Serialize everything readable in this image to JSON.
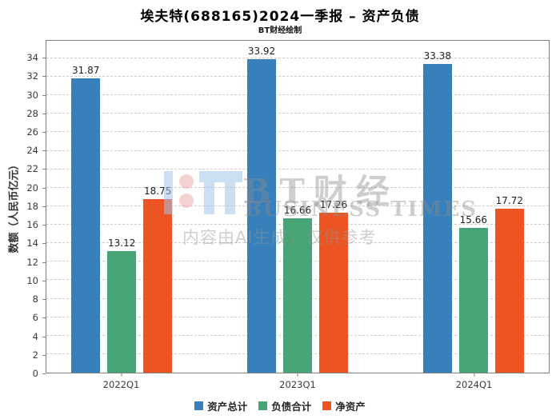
{
  "title": "埃夫特(688165)2024一季报 – 资产负债",
  "subtitle": "BT财经绘制",
  "watermark": {
    "brand_cn": "BT财经",
    "brand_en": "BUSINESS TIMES",
    "disclaimer": "内容由AI生成，仅供参考"
  },
  "chart_data": {
    "type": "bar",
    "title": "埃夫特(688165)2024一季报 – 资产负债",
    "subtitle": "BT财经绘制",
    "categories": [
      "2022Q1",
      "2023Q1",
      "2024Q1"
    ],
    "series": [
      {
        "name": "资产总计",
        "color": "#3780bc",
        "values": [
          31.87,
          33.92,
          33.38
        ]
      },
      {
        "name": "负债合计",
        "color": "#47a474",
        "values": [
          13.12,
          16.66,
          15.66
        ]
      },
      {
        "name": "净资产",
        "color": "#ec5424",
        "values": [
          18.75,
          17.26,
          17.72
        ]
      }
    ],
    "xlabel": "",
    "ylabel": "数额（人民币亿元）",
    "ylim": [
      0,
      35.9
    ],
    "yticks": [
      0,
      2,
      4,
      6,
      8,
      10,
      12,
      14,
      16,
      18,
      20,
      22,
      24,
      26,
      28,
      30,
      32,
      34
    ],
    "grid": true,
    "grid_style": "dashed",
    "value_labels": true,
    "legend_position": "bottom"
  }
}
